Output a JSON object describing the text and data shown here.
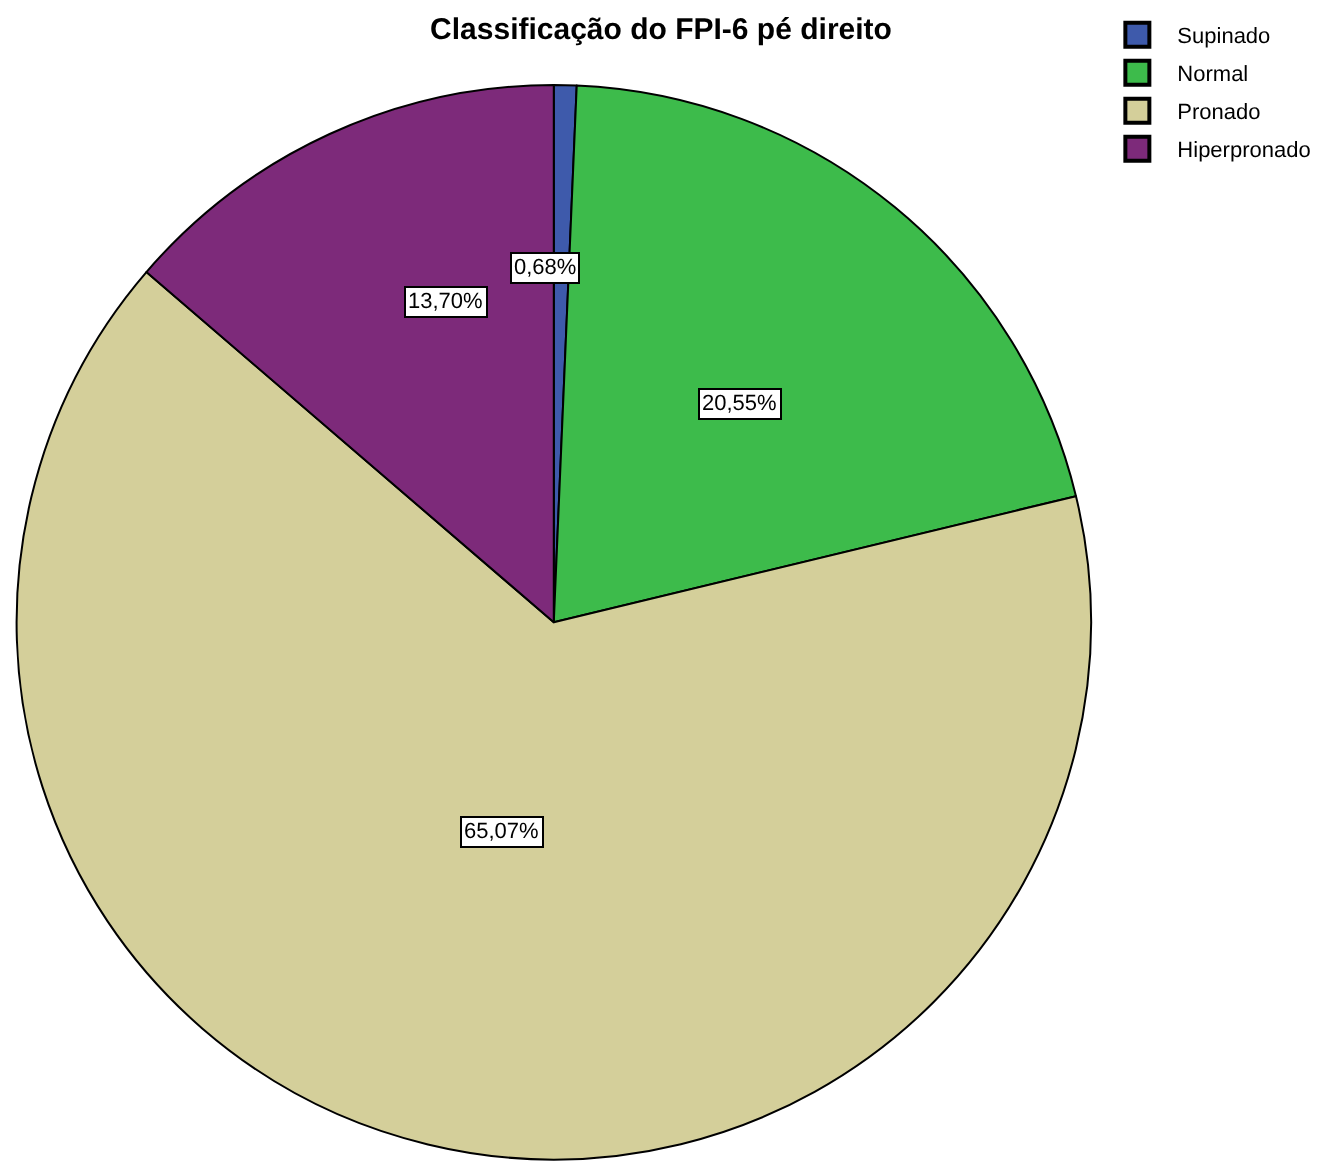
{
  "chart_data": {
    "type": "pie",
    "title": "Classificação do FPI-6 pé direito",
    "categories": [
      "Supinado",
      "Normal",
      "Pronado",
      "Hiperpronado"
    ],
    "values": [
      0.68,
      20.55,
      65.07,
      13.7
    ],
    "colors": [
      "#3e5aab",
      "#3dbb4b",
      "#d4cf9a",
      "#7d2a7a"
    ],
    "value_labels": [
      "0,68%",
      "20,55%",
      "65,07%",
      "13,70%"
    ],
    "legend": "top right"
  }
}
